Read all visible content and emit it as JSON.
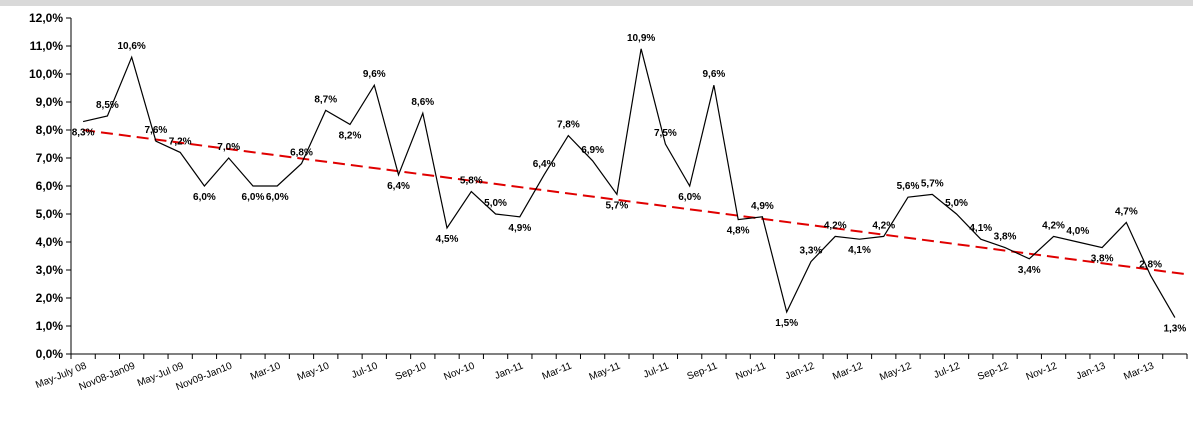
{
  "chart_data": {
    "type": "line",
    "title": "",
    "xlabel": "",
    "ylabel": "",
    "ylim": [
      0,
      12
    ],
    "yticks": [
      "0,0%",
      "1,0%",
      "2,0%",
      "3,0%",
      "4,0%",
      "5,0%",
      "6,0%",
      "7,0%",
      "8,0%",
      "9,0%",
      "10,0%",
      "11,0%",
      "12,0%"
    ],
    "xtick_labels": [
      "May-July 08",
      "Nov08-Jan09",
      "May-Jul 09",
      "Nov09-Jan10",
      "Mar-10",
      "May-10",
      "Jul-10",
      "Sep-10",
      "Nov-10",
      "Jan-11",
      "Mar-11",
      "May-11",
      "Jul-11",
      "Sep-11",
      "Nov-11",
      "Jan-12",
      "Mar-12",
      "May-12",
      "Jul-12",
      "Sep-12",
      "Nov-12",
      "Jan-13",
      "Mar-13"
    ],
    "grid": false,
    "legend": "none",
    "series": [
      {
        "values": [
          8.3,
          8.5,
          10.6,
          7.6,
          7.2,
          6.0,
          7.0,
          6.0,
          6.0,
          6.8,
          8.7,
          8.2,
          9.6,
          6.4,
          8.6,
          4.5,
          5.8,
          5.0,
          4.9,
          6.4,
          7.8,
          6.9,
          5.7,
          10.9,
          7.5,
          6.0,
          9.6,
          4.8,
          4.9,
          1.5,
          3.3,
          4.2,
          4.1,
          4.2,
          5.6,
          5.7,
          5.0,
          4.1,
          3.8,
          3.4,
          4.2,
          4.0,
          3.8,
          4.7,
          2.8,
          1.3
        ],
        "labels": [
          "8,3%",
          "8,5%",
          "10,6%",
          "7,6%",
          "7,2%",
          "6,0%",
          "7,0%",
          "6,0%",
          "6,0%",
          "6,8%",
          "8,7%",
          "8,2%",
          "9,6%",
          "6,4%",
          "8,6%",
          "4,5%",
          "5,8%",
          "5,0%",
          "4,9%",
          "6,4%",
          "7,8%",
          "6,9%",
          "5,7%",
          "10,9%",
          "7,5%",
          "6,0%",
          "9,6%",
          "4,8%",
          "4,9%",
          "1,5%",
          "3,3%",
          "4,2%",
          "4,1%",
          "4,2%",
          "5,6%",
          "5,7%",
          "5,0%",
          "4,1%",
          "3,8%",
          "3,4%",
          "4,2%",
          "4,0%",
          "3,8%",
          "4,7%",
          "2,8%",
          "1,3%"
        ],
        "color": "#000000"
      },
      {
        "type": "trendline",
        "style": "dashed",
        "start": 8.0,
        "end": 2.85,
        "color": "#e00000"
      }
    ]
  }
}
